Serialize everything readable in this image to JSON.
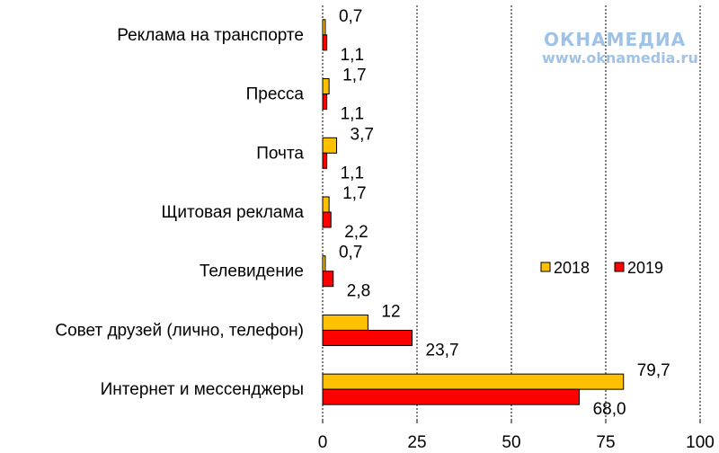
{
  "chart_data": {
    "type": "bar",
    "orientation": "horizontal",
    "categories": [
      "Реклама на транспорте",
      "Пресса",
      "Почта",
      "Щитовая реклама",
      "Телевидение",
      "Совет друзей (лично, телефон)",
      "Интернет и мессенджеры"
    ],
    "series": [
      {
        "name": "2018",
        "color": "#ffc000",
        "values": [
          0.7,
          1.7,
          3.7,
          1.7,
          0.7,
          12,
          79.7
        ],
        "labels": [
          "0,7",
          "1,7",
          "3,7",
          "1,7",
          "0,7",
          "12",
          "79,7"
        ]
      },
      {
        "name": "2019",
        "color": "#ff0000",
        "values": [
          1.1,
          1.1,
          1.1,
          2.2,
          2.8,
          23.7,
          68.0
        ],
        "labels": [
          "1,1",
          "1,1",
          "1,1",
          "2,2",
          "2,8",
          "23,7",
          "68,0"
        ]
      }
    ],
    "xlim": [
      0,
      100
    ],
    "xticks": [
      0,
      25,
      50,
      75,
      100
    ],
    "xtick_labels": [
      "0",
      "25",
      "50",
      "75",
      "100"
    ],
    "grid": "vertical-dotted",
    "legend_position": "right"
  },
  "watermark": {
    "logo": "ОКНАМЕДИА",
    "url": "www.oknamedia.ru"
  }
}
